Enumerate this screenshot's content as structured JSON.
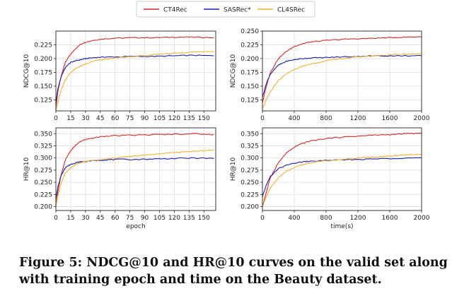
{
  "legend": [
    {
      "name": "CT4Rec",
      "color": "#d62728"
    },
    {
      "name": "SASRec*",
      "color": "#1f1fb4"
    },
    {
      "name": "CL4SRec",
      "color": "#f2b233"
    }
  ],
  "caption": {
    "line1": "Figure 5: NDCG@10 and HR@10 curves on the valid set along",
    "line2": "with training epoch and time on the Beauty dataset."
  },
  "chart_data": [
    {
      "type": "line",
      "panel": "top-left",
      "xlabel": "",
      "ylabel": "NDCG@10",
      "xlim": [
        0,
        162
      ],
      "ylim": [
        0.105,
        0.25
      ],
      "xticks": [
        0,
        15,
        30,
        45,
        60,
        75,
        90,
        105,
        120,
        135,
        150
      ],
      "yticks": [
        0.125,
        0.15,
        0.175,
        0.2,
        0.225
      ],
      "ytick_labels": [
        "0.125",
        "0.150",
        "0.175",
        "0.200",
        "0.225"
      ],
      "grid": true,
      "series": [
        {
          "name": "CT4Rec",
          "x": [
            0,
            2,
            5,
            8,
            10,
            15,
            20,
            25,
            30,
            40,
            50,
            60,
            80,
            100,
            120,
            140,
            160
          ],
          "values": [
            0.11,
            0.14,
            0.165,
            0.185,
            0.195,
            0.208,
            0.218,
            0.226,
            0.23,
            0.234,
            0.236,
            0.237,
            0.238,
            0.238,
            0.239,
            0.239,
            0.238
          ]
        },
        {
          "name": "SASRec*",
          "x": [
            0,
            2,
            5,
            8,
            10,
            15,
            20,
            25,
            30,
            40,
            50,
            60,
            80,
            100,
            120,
            140,
            160
          ],
          "values": [
            0.12,
            0.145,
            0.165,
            0.178,
            0.185,
            0.193,
            0.196,
            0.198,
            0.2,
            0.202,
            0.203,
            0.203,
            0.204,
            0.204,
            0.205,
            0.206,
            0.205
          ]
        },
        {
          "name": "CL4SRec",
          "x": [
            0,
            2,
            5,
            8,
            10,
            15,
            20,
            25,
            30,
            40,
            50,
            60,
            80,
            100,
            120,
            140,
            160
          ],
          "values": [
            0.105,
            0.12,
            0.14,
            0.155,
            0.163,
            0.175,
            0.182,
            0.186,
            0.19,
            0.196,
            0.199,
            0.201,
            0.204,
            0.207,
            0.21,
            0.212,
            0.213
          ]
        }
      ]
    },
    {
      "type": "line",
      "panel": "top-right",
      "xlabel": "",
      "ylabel": "NDCG@10",
      "xlim": [
        0,
        2000
      ],
      "ylim": [
        0.105,
        0.25
      ],
      "xticks": [
        0,
        400,
        800,
        1200,
        1600,
        2000
      ],
      "yticks": [
        0.125,
        0.15,
        0.175,
        0.2,
        0.225,
        0.25
      ],
      "ytick_labels": [
        "0.125",
        "0.150",
        "0.175",
        "0.200",
        "0.225",
        "0.250"
      ],
      "grid": true,
      "series": [
        {
          "name": "CT4Rec",
          "x": [
            0,
            50,
            100,
            200,
            300,
            400,
            500,
            600,
            800,
            1000,
            1200,
            1400,
            1600,
            1800,
            2000
          ],
          "values": [
            0.12,
            0.15,
            0.175,
            0.2,
            0.213,
            0.222,
            0.227,
            0.23,
            0.233,
            0.235,
            0.236,
            0.237,
            0.238,
            0.239,
            0.24
          ]
        },
        {
          "name": "SASRec*",
          "x": [
            0,
            50,
            100,
            200,
            300,
            400,
            500,
            600,
            800,
            1000,
            1200,
            1400,
            1600,
            1800,
            2000
          ],
          "values": [
            0.13,
            0.155,
            0.172,
            0.188,
            0.195,
            0.198,
            0.2,
            0.201,
            0.202,
            0.203,
            0.204,
            0.205,
            0.205,
            0.205,
            0.205
          ]
        },
        {
          "name": "CL4SRec",
          "x": [
            0,
            50,
            100,
            200,
            300,
            400,
            500,
            600,
            800,
            1000,
            1200,
            1400,
            1600,
            1800,
            2000
          ],
          "values": [
            0.11,
            0.125,
            0.14,
            0.16,
            0.172,
            0.18,
            0.186,
            0.19,
            0.196,
            0.2,
            0.203,
            0.205,
            0.207,
            0.208,
            0.209
          ]
        }
      ]
    },
    {
      "type": "line",
      "panel": "bottom-left",
      "xlabel": "epoch",
      "ylabel": "HR@10",
      "xlim": [
        0,
        162
      ],
      "ylim": [
        0.192,
        0.362
      ],
      "xticks": [
        0,
        15,
        30,
        45,
        60,
        75,
        90,
        105,
        120,
        135,
        150
      ],
      "yticks": [
        0.2,
        0.225,
        0.25,
        0.275,
        0.3,
        0.325,
        0.35
      ],
      "ytick_labels": [
        "0.200",
        "0.225",
        "0.250",
        "0.275",
        "0.300",
        "0.325",
        "0.350"
      ],
      "grid": true,
      "series": [
        {
          "name": "CT4Rec",
          "x": [
            0,
            2,
            5,
            8,
            10,
            15,
            20,
            25,
            30,
            40,
            50,
            60,
            80,
            100,
            120,
            140,
            160
          ],
          "values": [
            0.2,
            0.23,
            0.262,
            0.285,
            0.298,
            0.315,
            0.326,
            0.334,
            0.338,
            0.342,
            0.345,
            0.346,
            0.347,
            0.348,
            0.349,
            0.35,
            0.348
          ]
        },
        {
          "name": "SASRec*",
          "x": [
            0,
            2,
            5,
            8,
            10,
            15,
            20,
            25,
            30,
            40,
            50,
            60,
            80,
            100,
            120,
            140,
            160
          ],
          "values": [
            0.215,
            0.24,
            0.262,
            0.275,
            0.281,
            0.287,
            0.29,
            0.292,
            0.293,
            0.295,
            0.296,
            0.297,
            0.297,
            0.298,
            0.299,
            0.3,
            0.299
          ]
        },
        {
          "name": "CL4SRec",
          "x": [
            0,
            2,
            5,
            8,
            10,
            15,
            20,
            25,
            30,
            40,
            50,
            60,
            80,
            100,
            120,
            140,
            160
          ],
          "values": [
            0.2,
            0.222,
            0.245,
            0.262,
            0.27,
            0.28,
            0.286,
            0.29,
            0.293,
            0.296,
            0.298,
            0.3,
            0.304,
            0.308,
            0.311,
            0.314,
            0.316
          ]
        }
      ]
    },
    {
      "type": "line",
      "panel": "bottom-right",
      "xlabel": "time(s)",
      "ylabel": "HR@10",
      "xlim": [
        0,
        2000
      ],
      "ylim": [
        0.192,
        0.362
      ],
      "xticks": [
        0,
        400,
        800,
        1200,
        1600,
        2000
      ],
      "yticks": [
        0.2,
        0.225,
        0.25,
        0.275,
        0.3,
        0.325,
        0.35
      ],
      "ytick_labels": [
        "0.200",
        "0.225",
        "0.250",
        "0.275",
        "0.300",
        "0.325",
        "0.350"
      ],
      "grid": true,
      "series": [
        {
          "name": "CT4Rec",
          "x": [
            0,
            50,
            100,
            200,
            300,
            400,
            500,
            600,
            800,
            1000,
            1200,
            1400,
            1600,
            1800,
            2000
          ],
          "values": [
            0.2,
            0.23,
            0.26,
            0.29,
            0.31,
            0.322,
            0.33,
            0.335,
            0.34,
            0.343,
            0.345,
            0.347,
            0.348,
            0.35,
            0.351
          ]
        },
        {
          "name": "SASRec*",
          "x": [
            0,
            50,
            100,
            200,
            300,
            400,
            500,
            600,
            800,
            1000,
            1200,
            1400,
            1600,
            1800,
            2000
          ],
          "values": [
            0.22,
            0.245,
            0.262,
            0.278,
            0.285,
            0.289,
            0.292,
            0.293,
            0.295,
            0.296,
            0.297,
            0.298,
            0.299,
            0.3,
            0.3
          ]
        },
        {
          "name": "CL4SRec",
          "x": [
            0,
            50,
            100,
            200,
            300,
            400,
            500,
            600,
            800,
            1000,
            1200,
            1400,
            1600,
            1800,
            2000
          ],
          "values": [
            0.2,
            0.22,
            0.238,
            0.26,
            0.272,
            0.28,
            0.286,
            0.29,
            0.294,
            0.297,
            0.3,
            0.302,
            0.304,
            0.306,
            0.307
          ]
        }
      ]
    }
  ]
}
